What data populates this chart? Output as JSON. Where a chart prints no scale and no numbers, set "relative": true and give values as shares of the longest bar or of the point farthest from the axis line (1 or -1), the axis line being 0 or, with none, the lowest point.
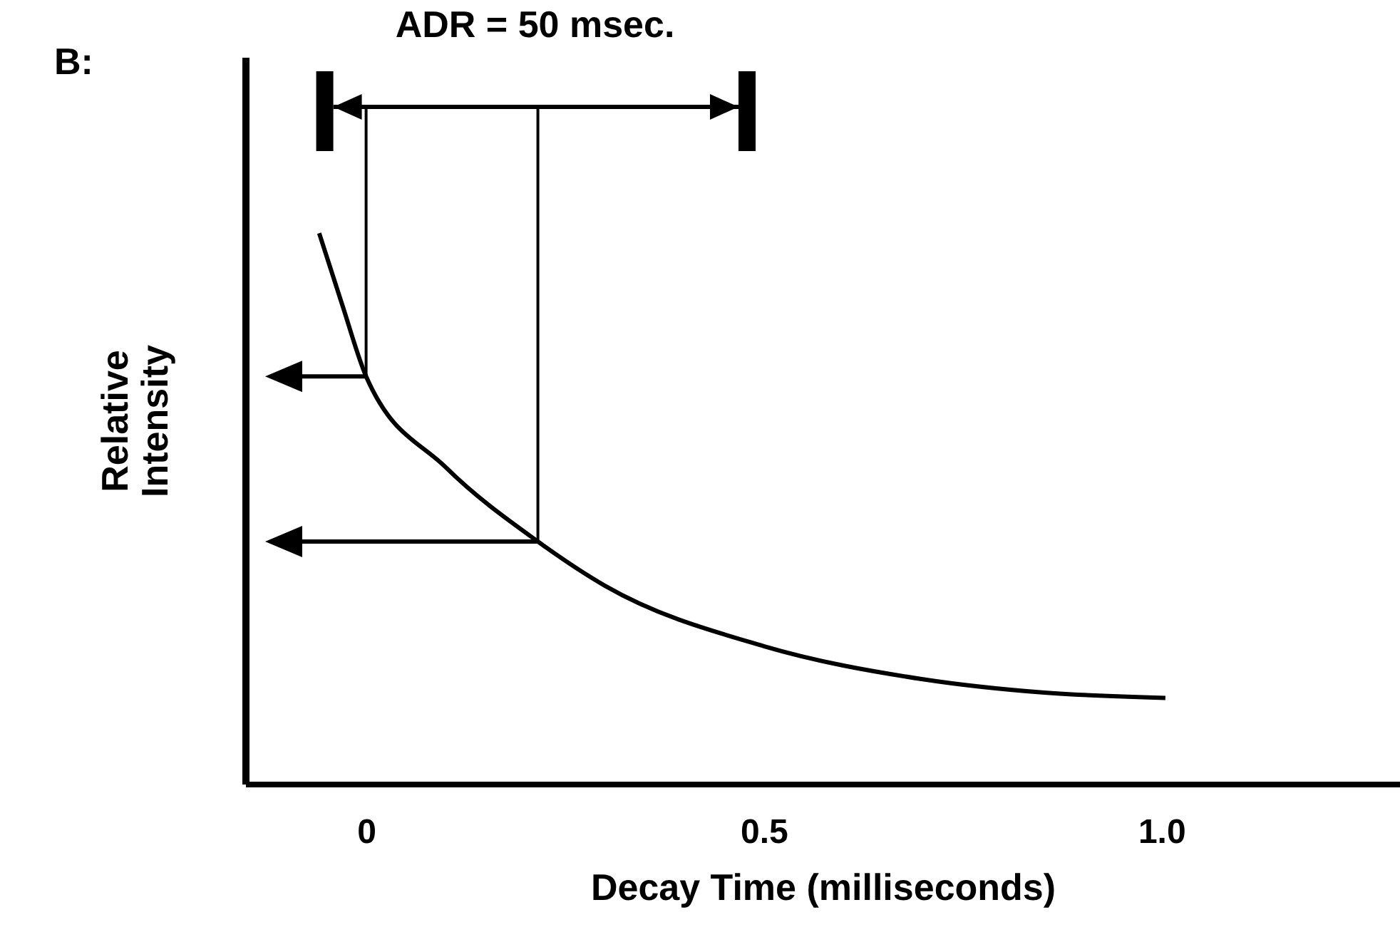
{
  "chart_data": {
    "type": "line",
    "relative": true,
    "xlabel": "Decay  Time  (milliseconds)",
    "ylabel": "Relative Intensity",
    "annotations": [
      "B:",
      "ADR = 50 msec."
    ],
    "xlim": [
      -0.152,
      1.3
    ],
    "xticks": [
      0,
      0.5,
      {
        "value": 1,
        "label": "1.0"
      }
    ],
    "grid": false,
    "marker": "none",
    "ref_lines": [
      {
        "axis": "x",
        "value": 0
      },
      {
        "axis": "x",
        "value": 0.216
      }
    ],
    "line_style": "solid",
    "series": [
      {
        "color": "#000000",
        "x": [
          -0.059,
          -0.03,
          0,
          0.1,
          0.216,
          0.3,
          0.5,
          0.7,
          0.85,
          1.005
        ],
        "values": [
          1.0,
          0.87,
          0.74,
          0.575,
          0.44,
          0.36,
          0.25,
          0.19,
          0.166,
          0.156
        ]
      }
    ]
  }
}
